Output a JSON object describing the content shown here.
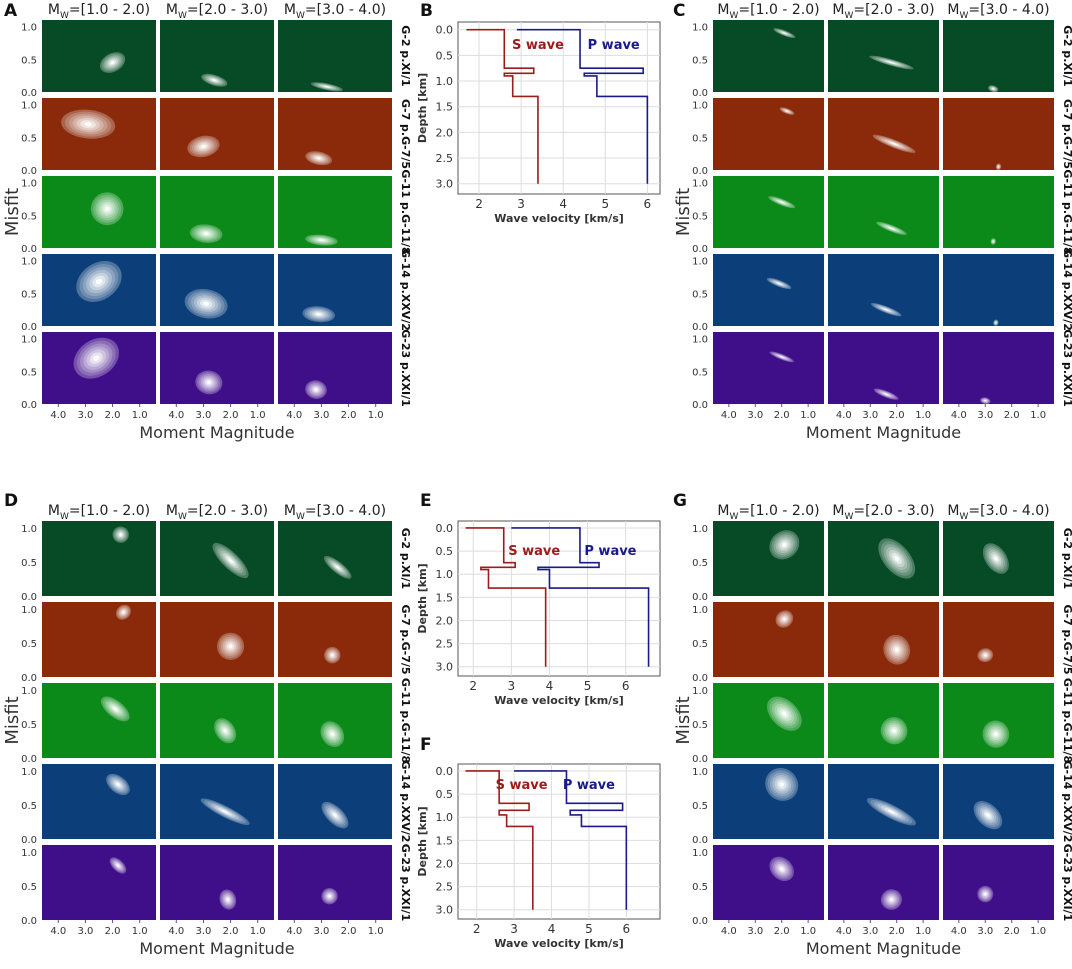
{
  "figure_title": "",
  "colors": {
    "G-2": "#064a26",
    "G-7": "#8a2a0a",
    "G-11": "#0b8a1a",
    "G-14": "#0c3f7a",
    "G-23": "#3f0f8a",
    "S": "#9b1c1c",
    "P": "#1a1a8a",
    "gridline": "#dddddd"
  },
  "chart_data": [
    {
      "id": "A",
      "panel_label": "A",
      "type": "heatmap",
      "column_headers": [
        "M",
        "=[1.0 - 2.0)",
        "=[2.0 - 3.0)",
        "=[3.0 - 4.0)"
      ],
      "columns": [
        {
          "header_main": "M",
          "header_sub": "W",
          "header_range": "=[1.0 - 2.0)"
        },
        {
          "header_main": "M",
          "header_sub": "W",
          "header_range": "=[2.0 - 3.0)"
        },
        {
          "header_main": "M",
          "header_sub": "W",
          "header_range": "=[3.0 - 4.0)"
        }
      ],
      "rows": [
        "G-2 p.XI/1",
        "G-7 p.G-7/5",
        "G-11 p.G-11/8",
        "G-14 p.XXV/2",
        "G-23 p.XXI/1"
      ],
      "xlabel": "Moment Magnitude",
      "ylabel": "Misfit",
      "xticks": [
        "4.0",
        "3.0",
        "2.0",
        "1.0"
      ],
      "yticks": [
        "0.0",
        "0.5",
        "1.0"
      ],
      "xlim": [
        4.6,
        0.4
      ],
      "ylim": [
        0,
        1.1
      ],
      "blobs": [
        [
          [
            2.0,
            0.45,
            0.5,
            0.14,
            -0.5
          ],
          [
            2.6,
            0.18,
            0.5,
            0.08,
            0.3
          ],
          [
            2.8,
            0.08,
            0.6,
            0.05,
            0.2
          ]
        ],
        [
          [
            2.9,
            0.7,
            1.0,
            0.22,
            0.1
          ],
          [
            3.0,
            0.36,
            0.6,
            0.16,
            -0.2
          ],
          [
            3.1,
            0.18,
            0.5,
            0.1,
            0.2
          ]
        ],
        [
          [
            2.2,
            0.6,
            0.6,
            0.25,
            -0.5
          ],
          [
            2.9,
            0.22,
            0.6,
            0.14,
            0.1
          ],
          [
            3.0,
            0.12,
            0.6,
            0.08,
            0.1
          ]
        ],
        [
          [
            2.5,
            0.68,
            0.9,
            0.28,
            -0.6
          ],
          [
            2.9,
            0.34,
            0.8,
            0.22,
            0.2
          ],
          [
            3.1,
            0.18,
            0.6,
            0.12,
            0.1
          ]
        ],
        [
          [
            2.6,
            0.7,
            0.9,
            0.28,
            -0.6
          ],
          [
            2.8,
            0.33,
            0.5,
            0.18,
            0.2
          ],
          [
            3.2,
            0.22,
            0.4,
            0.14,
            0.2
          ]
        ]
      ]
    },
    {
      "id": "C",
      "panel_label": "C",
      "type": "heatmap",
      "columns": [
        {
          "header_main": "M",
          "header_sub": "W",
          "header_range": "=[1.0 - 2.0)"
        },
        {
          "header_main": "M",
          "header_sub": "W",
          "header_range": "=[2.0 - 3.0)"
        },
        {
          "header_main": "M",
          "header_sub": "W",
          "header_range": "=[3.0 - 4.0)"
        }
      ],
      "rows": [
        "G-2 p.XI/1",
        "G-7 p.G-7/5",
        "G-11 p.G-11/8",
        "G-14 p.XXV/2",
        "G-23 p.XXI/1"
      ],
      "xlabel": "Moment Magnitude",
      "ylabel": "Misfit",
      "xticks": [
        "4.0",
        "3.0",
        "2.0",
        "1.0"
      ],
      "yticks": [
        "0.0",
        "0.5",
        "1.0"
      ],
      "xlim": [
        4.6,
        0.4
      ],
      "ylim": [
        0,
        1.1
      ],
      "blobs": [
        [
          [
            1.9,
            0.9,
            0.1,
            0.18,
            -1.2
          ],
          [
            2.2,
            0.45,
            0.12,
            0.35,
            -1.3
          ],
          [
            2.7,
            0.05,
            0.2,
            0.05,
            0.3
          ]
        ],
        [
          [
            1.8,
            0.9,
            0.1,
            0.12,
            -1.2
          ],
          [
            2.1,
            0.4,
            0.15,
            0.35,
            -1.2
          ],
          [
            2.5,
            0.05,
            0.1,
            0.05,
            0.2
          ]
        ],
        [
          [
            2.0,
            0.7,
            0.12,
            0.22,
            -1.2
          ],
          [
            2.2,
            0.3,
            0.12,
            0.25,
            -1.2
          ],
          [
            2.7,
            0.1,
            0.1,
            0.05,
            0.2
          ]
        ],
        [
          [
            2.1,
            0.65,
            0.12,
            0.2,
            -1.2
          ],
          [
            2.4,
            0.25,
            0.12,
            0.25,
            -1.2
          ],
          [
            2.6,
            0.05,
            0.1,
            0.05,
            0.2
          ]
        ],
        [
          [
            2.0,
            0.72,
            0.1,
            0.2,
            -1.2
          ],
          [
            2.4,
            0.15,
            0.12,
            0.2,
            -1.2
          ],
          [
            3.0,
            0.05,
            0.2,
            0.05,
            0.2
          ]
        ]
      ]
    },
    {
      "id": "D",
      "panel_label": "D",
      "type": "heatmap",
      "columns": [
        {
          "header_main": "M",
          "header_sub": "W",
          "header_range": "=[1.0 - 2.0)"
        },
        {
          "header_main": "M",
          "header_sub": "W",
          "header_range": "=[2.0 - 3.0)"
        },
        {
          "header_main": "M",
          "header_sub": "W",
          "header_range": "=[3.0 - 4.0)"
        }
      ],
      "rows": [
        "G-2 p.XI/1",
        "G-7 p.G-7/5",
        "G-11 p.G-11/8",
        "G-14 p.XXV/2",
        "G-23 p.XXI/1"
      ],
      "xlabel": "Moment Magnitude",
      "ylabel": "Misfit",
      "xticks": [
        "4.0",
        "3.0",
        "2.0",
        "1.0"
      ],
      "yticks": [
        "0.0",
        "0.5",
        "1.0"
      ],
      "xlim": [
        4.6,
        0.4
      ],
      "ylim": [
        0,
        1.1
      ],
      "blobs": [
        [
          [
            1.7,
            0.9,
            0.3,
            0.12,
            -0.9
          ],
          [
            2.0,
            0.52,
            0.3,
            0.35,
            -0.8
          ],
          [
            2.4,
            0.42,
            0.2,
            0.25,
            -0.9
          ]
        ],
        [
          [
            1.6,
            0.95,
            0.3,
            0.1,
            -0.8
          ],
          [
            2.0,
            0.45,
            0.5,
            0.2,
            -0.4
          ],
          [
            2.6,
            0.32,
            0.3,
            0.12,
            -0.4
          ]
        ],
        [
          [
            1.9,
            0.72,
            0.3,
            0.25,
            -0.9
          ],
          [
            2.2,
            0.4,
            0.35,
            0.2,
            -0.6
          ],
          [
            2.6,
            0.35,
            0.4,
            0.2,
            -0.6
          ]
        ],
        [
          [
            1.8,
            0.8,
            0.3,
            0.2,
            -0.9
          ],
          [
            2.2,
            0.4,
            0.2,
            0.4,
            -1.1
          ],
          [
            2.5,
            0.35,
            0.3,
            0.25,
            -0.8
          ]
        ],
        [
          [
            1.8,
            0.8,
            0.2,
            0.15,
            -0.8
          ],
          [
            2.1,
            0.3,
            0.3,
            0.15,
            -0.3
          ],
          [
            2.7,
            0.35,
            0.3,
            0.12,
            -0.2
          ]
        ]
      ]
    },
    {
      "id": "G",
      "panel_label": "G",
      "type": "heatmap",
      "columns": [
        {
          "header_main": "M",
          "header_sub": "W",
          "header_range": "=[1.0 - 2.0)"
        },
        {
          "header_main": "M",
          "header_sub": "W",
          "header_range": "=[2.0 - 3.0)"
        },
        {
          "header_main": "M",
          "header_sub": "W",
          "header_range": "=[3.0 - 4.0)"
        }
      ],
      "rows": [
        "G-2 p.XI/1",
        "G-7 p.G-7/5",
        "G-11 p.G-11/8",
        "G-14 p.XXV/2",
        "G-23 p.XXI/1"
      ],
      "xlabel": "Moment Magnitude",
      "ylabel": "Misfit",
      "xticks": [
        "4.0",
        "3.0",
        "2.0",
        "1.0"
      ],
      "yticks": [
        "0.0",
        "0.5",
        "1.0"
      ],
      "xlim": [
        4.6,
        0.4
      ],
      "ylim": [
        0,
        1.1
      ],
      "blobs": [
        [
          [
            1.9,
            0.75,
            0.6,
            0.2,
            -0.7
          ],
          [
            2.0,
            0.55,
            0.5,
            0.35,
            -0.7
          ],
          [
            2.6,
            0.55,
            0.4,
            0.25,
            -0.6
          ]
        ],
        [
          [
            1.9,
            0.85,
            0.35,
            0.12,
            -0.7
          ],
          [
            2.0,
            0.4,
            0.5,
            0.22,
            -0.3
          ],
          [
            3.0,
            0.32,
            0.3,
            0.1,
            -0.2
          ]
        ],
        [
          [
            1.9,
            0.65,
            0.5,
            0.3,
            -0.8
          ],
          [
            2.1,
            0.4,
            0.5,
            0.2,
            -0.5
          ],
          [
            2.6,
            0.35,
            0.5,
            0.2,
            -0.5
          ]
        ],
        [
          [
            2.0,
            0.8,
            0.6,
            0.25,
            -0.8
          ],
          [
            2.2,
            0.4,
            0.25,
            0.4,
            -1.1
          ],
          [
            2.9,
            0.35,
            0.4,
            0.25,
            -0.8
          ]
        ],
        [
          [
            2.0,
            0.75,
            0.4,
            0.2,
            -0.8
          ],
          [
            2.2,
            0.3,
            0.4,
            0.15,
            -0.3
          ],
          [
            3.0,
            0.38,
            0.3,
            0.12,
            -0.2
          ]
        ]
      ]
    },
    {
      "id": "B",
      "panel_label": "B",
      "type": "line",
      "xlabel": "Wave velocity [km/s]",
      "ylabel": "Depth [km]",
      "xlim": [
        1.5,
        6.3
      ],
      "ylim": [
        3.2,
        -0.15
      ],
      "xticks": [
        "2",
        "3",
        "4",
        "5",
        "6"
      ],
      "yticks": [
        "0.0",
        "0.5",
        "1.0",
        "1.5",
        "2.0",
        "2.5",
        "3.0"
      ],
      "series": [
        {
          "name": "S wave",
          "color": "S",
          "label_pos": [
            3.4,
            0.3
          ],
          "x": [
            1.7,
            2.6,
            2.6,
            3.3,
            3.3,
            2.6,
            2.6,
            2.8,
            2.8,
            3.4,
            3.4
          ],
          "y": [
            0.0,
            0.0,
            0.75,
            0.75,
            0.85,
            0.85,
            0.9,
            0.9,
            1.3,
            1.3,
            3.0
          ]
        },
        {
          "name": "P wave",
          "color": "P",
          "label_pos": [
            5.2,
            0.3
          ],
          "x": [
            2.9,
            4.4,
            4.4,
            5.9,
            5.9,
            4.5,
            4.5,
            4.8,
            4.8,
            6.0,
            6.0
          ],
          "y": [
            0.0,
            0.0,
            0.75,
            0.75,
            0.85,
            0.85,
            0.9,
            0.9,
            1.3,
            1.3,
            3.0
          ]
        }
      ]
    },
    {
      "id": "E",
      "panel_label": "E",
      "type": "line",
      "xlabel": "Wave velocity [km/s]",
      "ylabel": "Depth [km]",
      "xlim": [
        1.6,
        6.9
      ],
      "ylim": [
        3.2,
        -0.15
      ],
      "xticks": [
        "2",
        "3",
        "4",
        "5",
        "6"
      ],
      "yticks": [
        "0.0",
        "0.5",
        "1.0",
        "1.5",
        "2.0",
        "2.5",
        "3.0"
      ],
      "series": [
        {
          "name": "S wave",
          "color": "S",
          "label_pos": [
            3.6,
            0.5
          ],
          "x": [
            1.8,
            2.8,
            2.8,
            3.1,
            3.1,
            2.2,
            2.2,
            2.4,
            2.4,
            3.9,
            3.9
          ],
          "y": [
            0.0,
            0.0,
            0.75,
            0.75,
            0.85,
            0.85,
            0.9,
            0.9,
            1.3,
            1.3,
            3.0
          ]
        },
        {
          "name": "P wave",
          "color": "P",
          "label_pos": [
            5.6,
            0.5
          ],
          "x": [
            3.0,
            4.8,
            4.8,
            5.3,
            5.3,
            3.7,
            3.7,
            4.0,
            4.0,
            6.6,
            6.6
          ],
          "y": [
            0.0,
            0.0,
            0.75,
            0.75,
            0.85,
            0.85,
            0.9,
            0.9,
            1.3,
            1.3,
            3.0
          ]
        }
      ]
    },
    {
      "id": "F",
      "panel_label": "F",
      "type": "line",
      "xlabel": "Wave velocity [km/s]",
      "ylabel": "Depth [km]",
      "xlim": [
        1.5,
        6.9
      ],
      "ylim": [
        3.2,
        -0.15
      ],
      "xticks": [
        "2",
        "3",
        "4",
        "5",
        "6"
      ],
      "yticks": [
        "0.0",
        "0.5",
        "1.0",
        "1.5",
        "2.0",
        "2.5",
        "3.0"
      ],
      "series": [
        {
          "name": "S wave",
          "color": "S",
          "label_pos": [
            3.2,
            0.3
          ],
          "x": [
            1.7,
            2.6,
            2.6,
            3.4,
            3.4,
            2.6,
            2.6,
            2.8,
            2.8,
            3.5,
            3.5
          ],
          "y": [
            0.0,
            0.0,
            0.7,
            0.7,
            0.85,
            0.85,
            0.95,
            0.95,
            1.2,
            1.2,
            3.0
          ]
        },
        {
          "name": "P wave",
          "color": "P",
          "label_pos": [
            5.0,
            0.3
          ],
          "x": [
            3.0,
            4.4,
            4.4,
            5.9,
            5.9,
            4.5,
            4.5,
            4.8,
            4.8,
            6.0,
            6.0
          ],
          "y": [
            0.0,
            0.0,
            0.7,
            0.7,
            0.85,
            0.85,
            0.95,
            0.95,
            1.2,
            1.2,
            3.0
          ]
        }
      ]
    }
  ]
}
